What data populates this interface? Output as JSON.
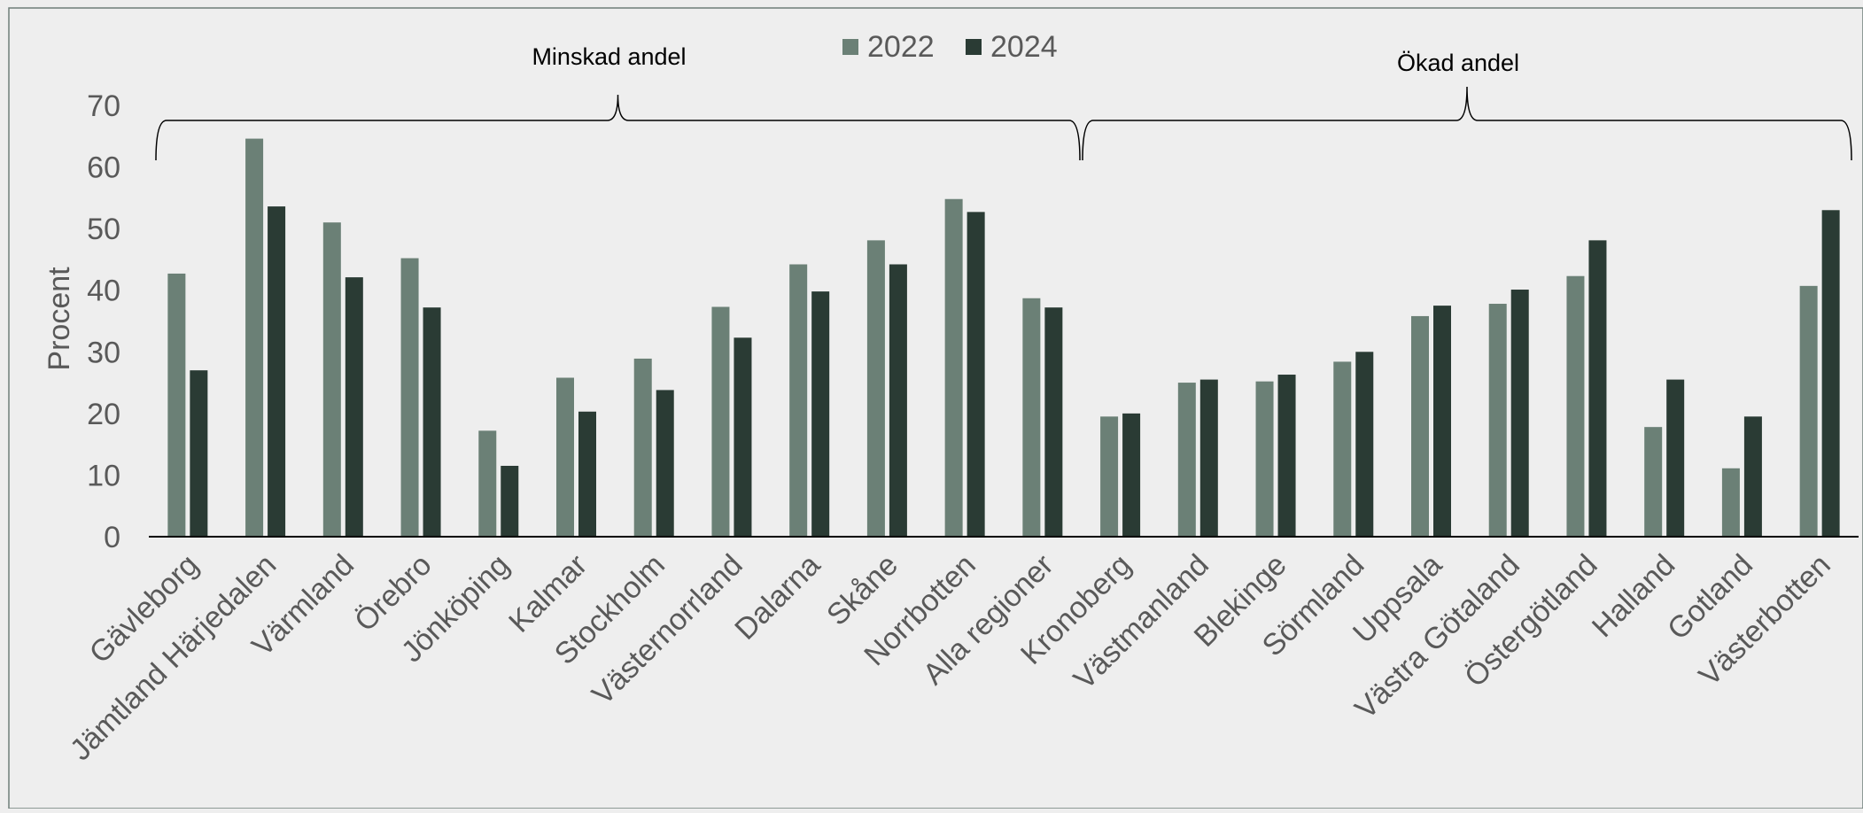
{
  "chart_data": {
    "type": "bar",
    "title": "",
    "xlabel": "",
    "ylabel": "Procent",
    "ylim": [
      0,
      70
    ],
    "yticks": [
      0,
      10,
      20,
      30,
      40,
      50,
      60,
      70
    ],
    "grid": false,
    "legend_position": "top-center",
    "categories": [
      "Gävleborg",
      "Jämtland Härjedalen",
      "Värmland",
      "Örebro",
      "Jönköping",
      "Kalmar",
      "Stockholm",
      "Västernorrland",
      "Dalarna",
      "Skåne",
      "Norrbotten",
      "Alla regioner",
      "Kronoberg",
      "Västmanland",
      "Blekinge",
      "Sörmland",
      "Uppsala",
      "Västra Götaland",
      "Östergötland",
      "Halland",
      "Gotland",
      "Västerbotten"
    ],
    "series": [
      {
        "name": "2022",
        "color": "#6b8076",
        "values": [
          42.7,
          64.6,
          51.0,
          45.2,
          17.2,
          25.8,
          28.9,
          37.3,
          44.2,
          48.1,
          54.8,
          38.7,
          19.5,
          25.0,
          25.2,
          28.4,
          35.8,
          37.8,
          42.3,
          17.8,
          11.1,
          40.7
        ]
      },
      {
        "name": "2024",
        "color": "#2a3b34",
        "values": [
          27.0,
          53.6,
          42.1,
          37.2,
          11.5,
          20.3,
          23.8,
          32.3,
          39.8,
          44.2,
          52.7,
          37.2,
          20.0,
          25.5,
          26.3,
          30.0,
          37.5,
          40.1,
          48.1,
          25.5,
          19.5,
          53.0
        ]
      }
    ],
    "annotations": [
      {
        "text": "Minskad andel",
        "type": "bracket",
        "from_category": "Gävleborg",
        "to_category": "Alla regioner"
      },
      {
        "text": "Ökad andel",
        "type": "bracket",
        "from_category": "Kronoberg",
        "to_category": "Västerbotten"
      }
    ]
  }
}
